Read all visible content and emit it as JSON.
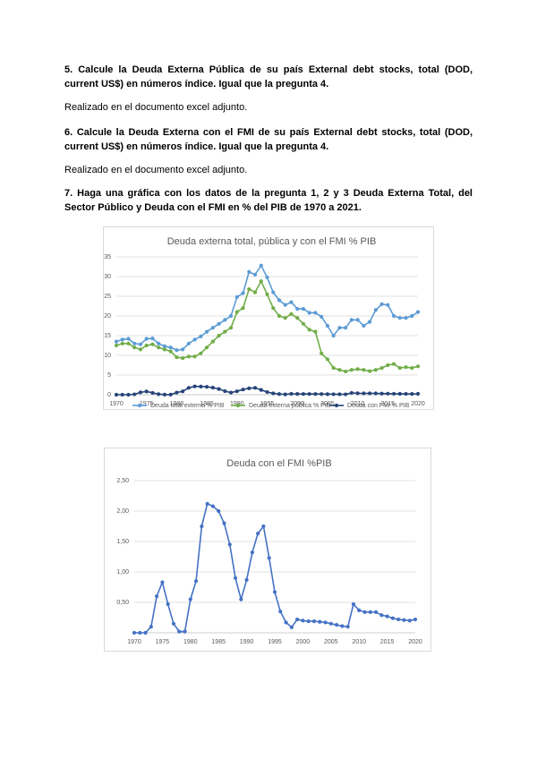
{
  "document": {
    "blocks": [
      "5. Calcule la Deuda Externa Pública de su país External debt stocks, total (DOD, current US$) en números índice. Igual que la pregunta 4.",
      "Realizado en el documento excel adjunto.",
      "6. Calcule la Deuda Externa con el FMI de su país External debt stocks, total (DOD, current US$) en números índice. Igual que la pregunta 4.",
      "Realizado en el documento excel adjunto.",
      "7. Haga una gráfica con los datos de la pregunta 1, 2 y 3 Deuda Externa Total, del Sector Público y Deuda con el FMI en % del PIB de 1970 a 2021."
    ]
  },
  "chart_data": [
    {
      "type": "line",
      "title": "Deuda externa total, pública y con el FMI % PIB",
      "x": [
        1970,
        1971,
        1972,
        1973,
        1974,
        1975,
        1976,
        1977,
        1978,
        1979,
        1980,
        1981,
        1982,
        1983,
        1984,
        1985,
        1986,
        1987,
        1988,
        1989,
        1990,
        1991,
        1992,
        1993,
        1994,
        1995,
        1996,
        1997,
        1998,
        1999,
        2000,
        2001,
        2002,
        2003,
        2004,
        2005,
        2006,
        2007,
        2008,
        2009,
        2010,
        2011,
        2012,
        2013,
        2014,
        2015,
        2016,
        2017,
        2018,
        2019,
        2020
      ],
      "series": [
        {
          "name": "Deuda total externa % PIB",
          "color": "#5b9bd5",
          "values": [
            13.5,
            14,
            14.2,
            13,
            12.8,
            14.2,
            14.3,
            13,
            12.3,
            12,
            11.3,
            11.5,
            13,
            14,
            14.8,
            16,
            17,
            18,
            19,
            20,
            24.8,
            25.8,
            31.2,
            30.5,
            32.8,
            29.8,
            26,
            24,
            22.8,
            23.5,
            21.8,
            21.8,
            20.8,
            20.8,
            19.8,
            17.5,
            15,
            17,
            17,
            19,
            19,
            17.5,
            18.5,
            21.5,
            23,
            22.8,
            20,
            19.5,
            19.5,
            20,
            21
          ]
        },
        {
          "name": "Deuda externa pública % PIB",
          "color": "#70ad47",
          "values": [
            12.5,
            13,
            13,
            12,
            11.5,
            12.5,
            12.8,
            12,
            11.5,
            11,
            9.5,
            9.3,
            9.7,
            9.7,
            10.5,
            12,
            13.5,
            15,
            16,
            17,
            21,
            22,
            26.8,
            26,
            28.8,
            25.5,
            22,
            20,
            19.5,
            20.5,
            19.5,
            18,
            16.5,
            16,
            10.5,
            9,
            6.8,
            6.3,
            5.9,
            6.3,
            6.5,
            6.3,
            6,
            6.3,
            6.8,
            7.5,
            7.8,
            6.8,
            7,
            6.8,
            7.2
          ]
        },
        {
          "name": "Deuda con FMI % PIB",
          "color": "#264478",
          "values": [
            0,
            0,
            0,
            0.1,
            0.6,
            0.83,
            0.47,
            0.15,
            0.02,
            0.02,
            0.55,
            0.85,
            1.75,
            2.12,
            2.08,
            2,
            1.8,
            1.45,
            0.9,
            0.55,
            0.87,
            1.32,
            1.63,
            1.75,
            1.23,
            0.67,
            0.35,
            0.17,
            0.09,
            0.22,
            0.2,
            0.19,
            0.19,
            0.18,
            0.17,
            0.15,
            0.13,
            0.11,
            0.1,
            0.47,
            0.37,
            0.34,
            0.34,
            0.34,
            0.29,
            0.27,
            0.24,
            0.22,
            0.21,
            0.2,
            0.22
          ]
        }
      ],
      "xlim": [
        1970,
        2020
      ],
      "xticks": [
        1970,
        1975,
        1980,
        1985,
        1990,
        1995,
        2000,
        2005,
        2010,
        2015,
        2020
      ],
      "ylim": [
        0,
        35
      ],
      "yticks": [
        0,
        5,
        10,
        15,
        20,
        25,
        30,
        35
      ],
      "grid": true,
      "legend": "bottom"
    },
    {
      "type": "line",
      "title": "Deuda con el FMI %PIB",
      "x": [
        1970,
        1971,
        1972,
        1973,
        1974,
        1975,
        1976,
        1977,
        1978,
        1979,
        1980,
        1981,
        1982,
        1983,
        1984,
        1985,
        1986,
        1987,
        1988,
        1989,
        1990,
        1991,
        1992,
        1993,
        1994,
        1995,
        1996,
        1997,
        1998,
        1999,
        2000,
        2001,
        2002,
        2003,
        2004,
        2005,
        2006,
        2007,
        2008,
        2009,
        2010,
        2011,
        2012,
        2013,
        2014,
        2015,
        2016,
        2017,
        2018,
        2019,
        2020
      ],
      "values": [
        0,
        0,
        0,
        0.1,
        0.6,
        0.83,
        0.47,
        0.15,
        0.02,
        0.02,
        0.55,
        0.85,
        1.75,
        2.12,
        2.08,
        2,
        1.8,
        1.45,
        0.9,
        0.55,
        0.87,
        1.32,
        1.63,
        1.75,
        1.23,
        0.67,
        0.35,
        0.17,
        0.09,
        0.22,
        0.2,
        0.19,
        0.19,
        0.18,
        0.17,
        0.15,
        0.13,
        0.11,
        0.1,
        0.47,
        0.37,
        0.34,
        0.34,
        0.34,
        0.29,
        0.27,
        0.24,
        0.22,
        0.21,
        0.2,
        0.22
      ],
      "color": "#4472c4",
      "xlim": [
        1970,
        2020
      ],
      "xticks": [
        1970,
        1975,
        1980,
        1985,
        1990,
        1995,
        2000,
        2005,
        2010,
        2015,
        2020
      ],
      "ylim": [
        0,
        2.5
      ],
      "yticks": [
        {
          "value": 0.5,
          "label": "0,50"
        },
        {
          "value": 1,
          "label": "1,00"
        },
        {
          "value": 1.5,
          "label": "1,50"
        },
        {
          "value": 2,
          "label": "2,00"
        },
        {
          "value": 2.5,
          "label": "2,50"
        }
      ],
      "grid": true
    }
  ]
}
